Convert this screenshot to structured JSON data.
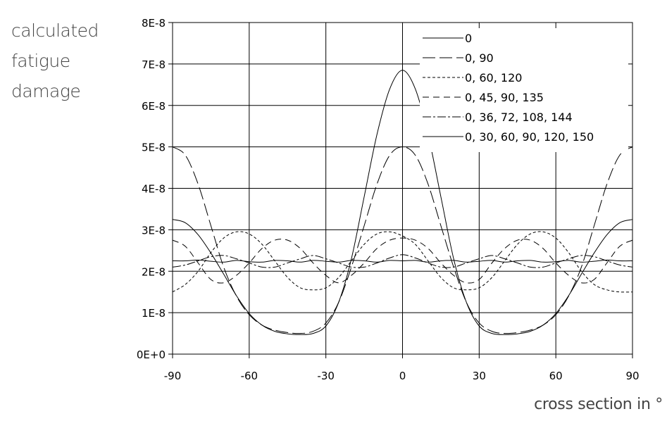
{
  "chart_data": {
    "type": "line",
    "ylabel_lines": [
      "calculated",
      "fatigue",
      "damage"
    ],
    "xlabel": "cross section in °",
    "xlim": [
      -90,
      90
    ],
    "ylim": [
      0,
      8e-08
    ],
    "xticks": [
      -90,
      -60,
      -30,
      0,
      30,
      60,
      90
    ],
    "xtick_labels": [
      "-90",
      "-60",
      "-30",
      "0",
      "30",
      "60",
      "90"
    ],
    "yticks": [
      0,
      1e-08,
      2e-08,
      3e-08,
      4e-08,
      5e-08,
      6e-08,
      7e-08,
      8e-08
    ],
    "ytick_labels": [
      "0E+0",
      "1E-8",
      "2E-8",
      "3E-8",
      "4E-8",
      "5E-8",
      "6E-8",
      "7E-8",
      "8E-8"
    ],
    "grid": true,
    "legend_position": "top-right",
    "series": [
      {
        "name": "0",
        "style": "solid-markers",
        "x": [
          -90,
          -85,
          -80,
          -75,
          -70,
          -65,
          -60,
          -55,
          -50,
          -45,
          -40,
          -35,
          -30,
          -25,
          -20,
          -15,
          -10,
          -5,
          0,
          5,
          10,
          15,
          20,
          25,
          30,
          35,
          40,
          45,
          50,
          55,
          60,
          65,
          70,
          75,
          80,
          85,
          90
        ],
        "y": [
          3.25e-08,
          3.17e-08,
          2.88e-08,
          2.44e-08,
          1.93e-08,
          1.41e-08,
          9.8e-09,
          7e-09,
          5.5e-09,
          4.9e-09,
          4.7e-09,
          5e-09,
          6.8e-09,
          1.25e-08,
          2.3e-08,
          3.8e-08,
          5.3e-08,
          6.4e-08,
          6.85e-08,
          6.4e-08,
          5.3e-08,
          3.8e-08,
          2.3e-08,
          1.25e-08,
          6.8e-09,
          5e-09,
          4.7e-09,
          4.9e-09,
          5.5e-09,
          7e-09,
          9.8e-09,
          1.41e-08,
          1.93e-08,
          2.44e-08,
          2.88e-08,
          3.17e-08,
          3.25e-08
        ]
      },
      {
        "name": "0, 90",
        "style": "long-dash",
        "x": [
          -90,
          -85,
          -80,
          -75,
          -70,
          -65,
          -60,
          -55,
          -50,
          -45,
          -40,
          -35,
          -30,
          -25,
          -20,
          -15,
          -10,
          -5,
          0,
          5,
          10,
          15,
          20,
          25,
          30,
          35,
          40,
          45,
          50,
          55,
          60,
          65,
          70,
          75,
          80,
          85,
          90
        ],
        "y": [
          5e-08,
          4.8e-08,
          4.1e-08,
          3.1e-08,
          2.1e-08,
          1.4e-08,
          9.5e-09,
          7e-09,
          5.8e-09,
          5.2e-09,
          5e-09,
          5.5e-09,
          7.5e-09,
          1.25e-08,
          2.1e-08,
          3.1e-08,
          4.1e-08,
          4.8e-08,
          5e-08,
          4.8e-08,
          4.1e-08,
          3.1e-08,
          2.1e-08,
          1.25e-08,
          7.5e-09,
          5.5e-09,
          5e-09,
          5.2e-09,
          5.8e-09,
          7e-09,
          9.5e-09,
          1.4e-08,
          2.1e-08,
          3.1e-08,
          4.1e-08,
          4.8e-08,
          5e-08
        ]
      },
      {
        "name": "0, 60, 120",
        "style": "short-dash",
        "x": [
          -90,
          -85,
          -80,
          -75,
          -70,
          -65,
          -60,
          -55,
          -50,
          -45,
          -40,
          -35,
          -30,
          -25,
          -20,
          -15,
          -10,
          -5,
          0,
          5,
          10,
          15,
          20,
          25,
          30,
          35,
          40,
          45,
          50,
          55,
          60,
          65,
          70,
          75,
          80,
          85,
          90
        ],
        "y": [
          1.5e-08,
          1.68e-08,
          2e-08,
          2.45e-08,
          2.8e-08,
          2.95e-08,
          2.9e-08,
          2.65e-08,
          2.25e-08,
          1.85e-08,
          1.6e-08,
          1.55e-08,
          1.6e-08,
          1.85e-08,
          2.25e-08,
          2.65e-08,
          2.9e-08,
          2.95e-08,
          2.85e-08,
          2.65e-08,
          2.25e-08,
          1.85e-08,
          1.6e-08,
          1.55e-08,
          1.6e-08,
          1.85e-08,
          2.25e-08,
          2.65e-08,
          2.9e-08,
          2.95e-08,
          2.8e-08,
          2.45e-08,
          2e-08,
          1.68e-08,
          1.55e-08,
          1.5e-08,
          1.5e-08
        ]
      },
      {
        "name": "0, 45, 90, 135",
        "style": "dash",
        "x": [
          -90,
          -85,
          -80,
          -75,
          -70,
          -65,
          -60,
          -55,
          -50,
          -45,
          -40,
          -35,
          -30,
          -25,
          -20,
          -15,
          -10,
          -5,
          0,
          5,
          10,
          15,
          20,
          25,
          30,
          35,
          40,
          45,
          50,
          55,
          60,
          65,
          70,
          75,
          80,
          85,
          90
        ],
        "y": [
          2.75e-08,
          2.6e-08,
          2.2e-08,
          1.8e-08,
          1.72e-08,
          1.9e-08,
          2.2e-08,
          2.55e-08,
          2.75e-08,
          2.75e-08,
          2.55e-08,
          2.2e-08,
          1.9e-08,
          1.72e-08,
          1.9e-08,
          2.2e-08,
          2.55e-08,
          2.75e-08,
          2.8e-08,
          2.75e-08,
          2.55e-08,
          2.2e-08,
          1.9e-08,
          1.72e-08,
          1.8e-08,
          2.2e-08,
          2.55e-08,
          2.75e-08,
          2.75e-08,
          2.55e-08,
          2.2e-08,
          1.9e-08,
          1.72e-08,
          1.8e-08,
          2.2e-08,
          2.6e-08,
          2.75e-08
        ]
      },
      {
        "name": "0, 36, 72, 108, 144",
        "style": "dash-dot",
        "x": [
          -90,
          -85,
          -80,
          -75,
          -70,
          -65,
          -60,
          -55,
          -50,
          -45,
          -40,
          -35,
          -30,
          -25,
          -20,
          -15,
          -10,
          -5,
          0,
          5,
          10,
          15,
          20,
          25,
          30,
          35,
          40,
          45,
          50,
          55,
          60,
          65,
          70,
          75,
          80,
          85,
          90
        ],
        "y": [
          2.1e-08,
          2.15e-08,
          2.25e-08,
          2.35e-08,
          2.38e-08,
          2.3e-08,
          2.2e-08,
          2.1e-08,
          2.1e-08,
          2.2e-08,
          2.3e-08,
          2.38e-08,
          2.3e-08,
          2.2e-08,
          2.1e-08,
          2.1e-08,
          2.2e-08,
          2.32e-08,
          2.4e-08,
          2.32e-08,
          2.2e-08,
          2.1e-08,
          2.1e-08,
          2.2e-08,
          2.3e-08,
          2.38e-08,
          2.3e-08,
          2.2e-08,
          2.1e-08,
          2.1e-08,
          2.2e-08,
          2.3e-08,
          2.38e-08,
          2.35e-08,
          2.25e-08,
          2.15e-08,
          2.1e-08
        ]
      },
      {
        "name": "0, 30, 60, 90, 120, 150",
        "style": "solid-markers-flat",
        "x": [
          -90,
          -85,
          -80,
          -75,
          -70,
          -65,
          -60,
          -55,
          -50,
          -45,
          -40,
          -35,
          -30,
          -25,
          -20,
          -15,
          -10,
          -5,
          0,
          5,
          10,
          15,
          20,
          25,
          30,
          35,
          40,
          45,
          50,
          55,
          60,
          65,
          70,
          75,
          80,
          85,
          90
        ],
        "y": [
          2.25e-08,
          2.25e-08,
          2.27e-08,
          2.24e-08,
          2.22e-08,
          2.26e-08,
          2.23e-08,
          2.22e-08,
          2.26e-08,
          2.25e-08,
          2.22e-08,
          2.26e-08,
          2.24e-08,
          2.22e-08,
          2.26e-08,
          2.25e-08,
          2.22e-08,
          2.26e-08,
          2.25e-08,
          2.26e-08,
          2.22e-08,
          2.25e-08,
          2.26e-08,
          2.22e-08,
          2.24e-08,
          2.26e-08,
          2.22e-08,
          2.25e-08,
          2.26e-08,
          2.22e-08,
          2.23e-08,
          2.26e-08,
          2.22e-08,
          2.24e-08,
          2.27e-08,
          2.25e-08,
          2.25e-08
        ]
      }
    ]
  }
}
